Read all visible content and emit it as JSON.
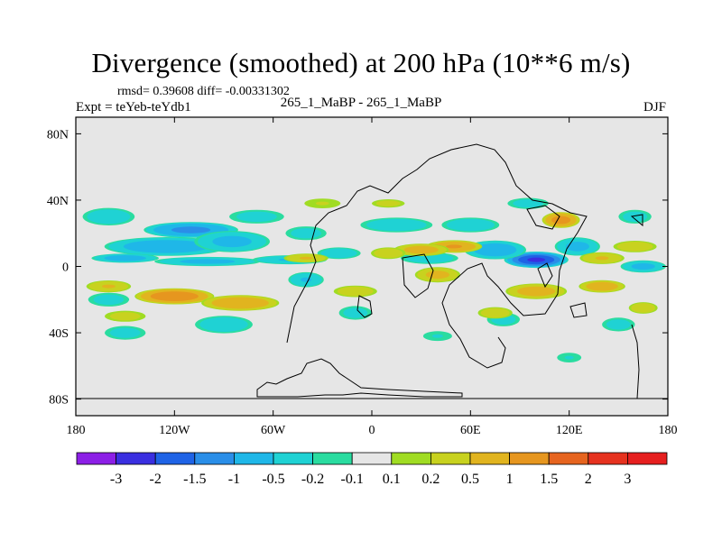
{
  "chart_data": {
    "type": "heatmap",
    "title": "Divergence (smoothed) at 200 hPa (10**6 m/s)",
    "stats": "rmsd= 0.39608 diff= -0.00331302",
    "expt": "Expt = teYeb-teYdb1",
    "runs": "265_1_MaBP - 265_1_MaBP",
    "season": "DJF",
    "x_range": [
      -180,
      180
    ],
    "y_range": [
      -90,
      90
    ],
    "x_ticks": [
      {
        "value": -180,
        "label": "180"
      },
      {
        "value": -120,
        "label": "120W"
      },
      {
        "value": -60,
        "label": "60W"
      },
      {
        "value": 0,
        "label": "0"
      },
      {
        "value": 60,
        "label": "60E"
      },
      {
        "value": 120,
        "label": "120E"
      },
      {
        "value": 180,
        "label": "180"
      }
    ],
    "y_ticks": [
      {
        "value": 80,
        "label": "80N"
      },
      {
        "value": 40,
        "label": "40N"
      },
      {
        "value": 0,
        "label": "0"
      },
      {
        "value": -40,
        "label": "40S"
      },
      {
        "value": -80,
        "label": "80S"
      }
    ],
    "colorbar": {
      "colors": [
        "#8c1fe6",
        "#3a2fe0",
        "#1f63e6",
        "#2a8ee8",
        "#1fb7e8",
        "#1fd2d4",
        "#2adca0",
        "#e6e6e6",
        "#a0dc23",
        "#c8d21f",
        "#e1b41f",
        "#e6961f",
        "#e6641f",
        "#e6321f",
        "#e61f1f"
      ],
      "labels": [
        "-3",
        "-2",
        "-1.5",
        "-1",
        "-0.5",
        "-0.2",
        "-0.1",
        "0.1",
        "0.2",
        "0.5",
        "1",
        "1.5",
        "2",
        "3"
      ]
    },
    "features": [
      {
        "lon": -110,
        "lat": 22,
        "value": -1.1,
        "sx": 30,
        "sy": 5
      },
      {
        "lon": -125,
        "lat": 12,
        "value": -0.8,
        "sx": 40,
        "sy": 6
      },
      {
        "lon": -85,
        "lat": 15,
        "value": -0.6,
        "sx": 25,
        "sy": 7
      },
      {
        "lon": -160,
        "lat": 30,
        "value": -0.4,
        "sx": 18,
        "sy": 6
      },
      {
        "lon": -150,
        "lat": 5,
        "value": -0.7,
        "sx": 22,
        "sy": 3
      },
      {
        "lon": -100,
        "lat": 3,
        "value": -0.6,
        "sx": 35,
        "sy": 3
      },
      {
        "lon": -50,
        "lat": 4,
        "value": -0.5,
        "sx": 25,
        "sy": 3
      },
      {
        "lon": -40,
        "lat": -8,
        "value": -0.5,
        "sx": 12,
        "sy": 5
      },
      {
        "lon": 100,
        "lat": 4,
        "value": -2.0,
        "sx": 20,
        "sy": 5
      },
      {
        "lon": 75,
        "lat": 10,
        "value": -0.8,
        "sx": 20,
        "sy": 6
      },
      {
        "lon": 125,
        "lat": 12,
        "value": -0.6,
        "sx": 15,
        "sy": 6
      },
      {
        "lon": 60,
        "lat": 25,
        "value": -0.4,
        "sx": 20,
        "sy": 5
      },
      {
        "lon": 15,
        "lat": 25,
        "value": -0.4,
        "sx": 25,
        "sy": 5
      },
      {
        "lon": -70,
        "lat": 30,
        "value": -0.3,
        "sx": 20,
        "sy": 5
      },
      {
        "lon": 95,
        "lat": 38,
        "value": -0.3,
        "sx": 15,
        "sy": 4
      },
      {
        "lon": 160,
        "lat": 30,
        "value": -0.3,
        "sx": 12,
        "sy": 5
      },
      {
        "lon": -20,
        "lat": 8,
        "value": -0.4,
        "sx": 15,
        "sy": 4
      },
      {
        "lon": 35,
        "lat": 5,
        "value": -0.4,
        "sx": 20,
        "sy": 4
      },
      {
        "lon": 165,
        "lat": 0,
        "value": -0.6,
        "sx": 15,
        "sy": 4
      },
      {
        "lon": -90,
        "lat": -35,
        "value": -0.4,
        "sx": 20,
        "sy": 6
      },
      {
        "lon": -150,
        "lat": -40,
        "value": -0.3,
        "sx": 15,
        "sy": 5
      },
      {
        "lon": -160,
        "lat": -20,
        "value": -0.3,
        "sx": 15,
        "sy": 5
      },
      {
        "lon": -10,
        "lat": -28,
        "value": -0.3,
        "sx": 12,
        "sy": 5
      },
      {
        "lon": 40,
        "lat": -42,
        "value": -0.2,
        "sx": 12,
        "sy": 4
      },
      {
        "lon": 80,
        "lat": -32,
        "value": -0.3,
        "sx": 12,
        "sy": 5
      },
      {
        "lon": 150,
        "lat": -35,
        "value": -0.3,
        "sx": 12,
        "sy": 5
      },
      {
        "lon": 120,
        "lat": -55,
        "value": -0.2,
        "sx": 10,
        "sy": 4
      },
      {
        "lon": -40,
        "lat": 20,
        "value": -0.3,
        "sx": 15,
        "sy": 5
      },
      {
        "lon": 115,
        "lat": 28,
        "value": 1.2,
        "sx": 12,
        "sy": 5
      },
      {
        "lon": 50,
        "lat": 12,
        "value": 1.0,
        "sx": 18,
        "sy": 4
      },
      {
        "lon": 30,
        "lat": 10,
        "value": 0.7,
        "sx": 18,
        "sy": 4
      },
      {
        "lon": -40,
        "lat": 5,
        "value": 0.5,
        "sx": 15,
        "sy": 3
      },
      {
        "lon": 10,
        "lat": 8,
        "value": 0.4,
        "sx": 12,
        "sy": 4
      },
      {
        "lon": 140,
        "lat": 5,
        "value": 0.5,
        "sx": 15,
        "sy": 4
      },
      {
        "lon": -120,
        "lat": -18,
        "value": 1.4,
        "sx": 25,
        "sy": 5
      },
      {
        "lon": -80,
        "lat": -22,
        "value": 0.9,
        "sx": 25,
        "sy": 5
      },
      {
        "lon": -160,
        "lat": -12,
        "value": 0.5,
        "sx": 15,
        "sy": 4
      },
      {
        "lon": 40,
        "lat": -5,
        "value": 0.6,
        "sx": 15,
        "sy": 5
      },
      {
        "lon": 100,
        "lat": -15,
        "value": 0.7,
        "sx": 20,
        "sy": 5
      },
      {
        "lon": 140,
        "lat": -12,
        "value": 0.8,
        "sx": 15,
        "sy": 4
      },
      {
        "lon": -150,
        "lat": -30,
        "value": 0.3,
        "sx": 15,
        "sy": 4
      },
      {
        "lon": -10,
        "lat": -15,
        "value": 0.4,
        "sx": 15,
        "sy": 4
      },
      {
        "lon": 10,
        "lat": 38,
        "value": 0.3,
        "sx": 12,
        "sy": 3
      },
      {
        "lon": 160,
        "lat": 12,
        "value": 0.4,
        "sx": 15,
        "sy": 4
      },
      {
        "lon": 75,
        "lat": -28,
        "value": 0.4,
        "sx": 12,
        "sy": 4
      },
      {
        "lon": 165,
        "lat": -25,
        "value": 0.4,
        "sx": 10,
        "sy": 4
      },
      {
        "lon": -30,
        "lat": 38,
        "value": 0.2,
        "sx": 15,
        "sy": 4
      }
    ]
  }
}
